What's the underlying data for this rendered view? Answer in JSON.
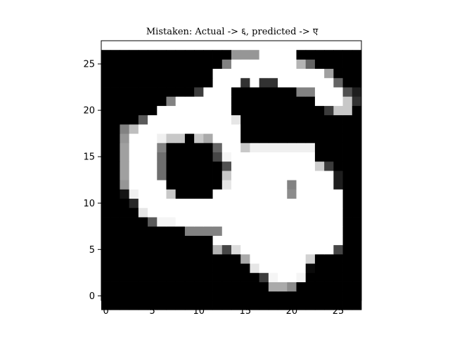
{
  "chart_data": {
    "type": "heatmap",
    "title": "Mistaken: Actual -> ६, predicted -> ए",
    "xlabel": "",
    "ylabel": "",
    "xlim": [
      -0.5,
      27.5
    ],
    "ylim": [
      27.5,
      -0.5
    ],
    "x_ticks": [
      0,
      5,
      10,
      15,
      20,
      25
    ],
    "y_ticks": [
      0,
      5,
      10,
      15,
      20,
      25
    ],
    "colormap": "gray",
    "value_range": [
      0,
      255
    ],
    "grid": false,
    "rows": 28,
    "cols": 28,
    "values": [
      [
        0,
        0,
        0,
        0,
        0,
        0,
        0,
        0,
        0,
        0,
        0,
        0,
        0,
        0,
        0,
        0,
        0,
        0,
        0,
        0,
        0,
        0,
        0,
        0,
        0,
        0,
        0,
        0
      ],
      [
        0,
        0,
        0,
        0,
        0,
        0,
        0,
        0,
        0,
        0,
        0,
        0,
        0,
        0,
        0,
        0,
        0,
        0,
        0,
        0,
        0,
        0,
        0,
        0,
        0,
        0,
        0,
        0
      ],
      [
        0,
        0,
        0,
        0,
        0,
        0,
        0,
        0,
        0,
        0,
        0,
        0,
        0,
        0,
        0,
        0,
        0,
        0,
        170,
        170,
        140,
        0,
        0,
        0,
        0,
        0,
        0,
        0
      ],
      [
        0,
        0,
        0,
        0,
        0,
        0,
        0,
        0,
        0,
        0,
        0,
        0,
        0,
        0,
        0,
        0,
        0,
        60,
        245,
        255,
        255,
        245,
        0,
        0,
        0,
        0,
        0,
        0
      ],
      [
        0,
        0,
        0,
        0,
        0,
        0,
        0,
        0,
        0,
        0,
        0,
        0,
        0,
        0,
        0,
        0,
        230,
        255,
        255,
        255,
        255,
        255,
        10,
        0,
        0,
        0,
        0,
        0
      ],
      [
        0,
        0,
        0,
        0,
        0,
        0,
        0,
        0,
        0,
        0,
        0,
        0,
        0,
        0,
        0,
        170,
        255,
        255,
        255,
        255,
        255,
        255,
        210,
        0,
        0,
        0,
        0,
        0
      ],
      [
        0,
        0,
        0,
        0,
        0,
        0,
        0,
        0,
        0,
        0,
        0,
        0,
        180,
        70,
        220,
        255,
        255,
        255,
        255,
        255,
        255,
        255,
        255,
        255,
        255,
        70,
        0,
        0
      ],
      [
        0,
        0,
        0,
        0,
        0,
        0,
        0,
        0,
        0,
        0,
        0,
        0,
        255,
        255,
        255,
        255,
        255,
        255,
        255,
        255,
        255,
        255,
        255,
        255,
        255,
        255,
        0,
        0
      ],
      [
        0,
        0,
        0,
        0,
        0,
        0,
        0,
        0,
        0,
        130,
        130,
        130,
        130,
        255,
        255,
        255,
        255,
        255,
        255,
        255,
        255,
        255,
        255,
        255,
        255,
        255,
        0,
        0
      ],
      [
        0,
        0,
        0,
        0,
        0,
        90,
        245,
        245,
        255,
        255,
        255,
        255,
        255,
        255,
        255,
        255,
        255,
        255,
        255,
        255,
        255,
        255,
        255,
        255,
        255,
        255,
        0,
        0
      ],
      [
        0,
        0,
        0,
        0,
        230,
        255,
        255,
        255,
        255,
        255,
        255,
        255,
        255,
        255,
        255,
        255,
        255,
        255,
        255,
        255,
        255,
        255,
        255,
        255,
        255,
        255,
        0,
        0
      ],
      [
        0,
        0,
        0,
        40,
        255,
        255,
        255,
        255,
        255,
        255,
        255,
        255,
        255,
        255,
        255,
        255,
        255,
        255,
        255,
        255,
        255,
        255,
        255,
        255,
        255,
        255,
        0,
        0
      ],
      [
        0,
        0,
        20,
        240,
        255,
        255,
        255,
        200,
        0,
        0,
        0,
        0,
        255,
        255,
        255,
        255,
        255,
        255,
        255,
        255,
        140,
        255,
        255,
        255,
        255,
        255,
        0,
        0
      ],
      [
        0,
        0,
        150,
        255,
        255,
        255,
        255,
        0,
        0,
        0,
        0,
        0,
        0,
        230,
        255,
        255,
        255,
        255,
        255,
        255,
        130,
        255,
        255,
        255,
        255,
        30,
        0,
        0
      ],
      [
        0,
        0,
        160,
        255,
        255,
        255,
        110,
        0,
        0,
        0,
        0,
        0,
        0,
        200,
        255,
        255,
        255,
        255,
        255,
        255,
        255,
        255,
        255,
        255,
        255,
        30,
        0,
        0
      ],
      [
        0,
        0,
        160,
        255,
        255,
        255,
        110,
        0,
        0,
        0,
        0,
        0,
        0,
        80,
        255,
        255,
        255,
        255,
        255,
        255,
        255,
        255,
        255,
        205,
        60,
        0,
        0,
        0
      ],
      [
        0,
        0,
        160,
        255,
        255,
        255,
        110,
        0,
        0,
        0,
        0,
        0,
        70,
        245,
        255,
        255,
        255,
        255,
        255,
        255,
        255,
        255,
        255,
        0,
        0,
        0,
        0,
        0
      ],
      [
        0,
        0,
        160,
        255,
        255,
        255,
        130,
        0,
        0,
        0,
        0,
        0,
        100,
        255,
        255,
        200,
        240,
        240,
        240,
        240,
        240,
        240,
        240,
        0,
        0,
        0,
        0,
        0
      ],
      [
        0,
        0,
        150,
        255,
        255,
        255,
        240,
        200,
        200,
        0,
        200,
        170,
        255,
        255,
        255,
        0,
        0,
        0,
        0,
        0,
        0,
        0,
        0,
        0,
        0,
        0,
        0,
        0
      ],
      [
        0,
        0,
        130,
        190,
        255,
        255,
        255,
        255,
        255,
        255,
        255,
        255,
        255,
        255,
        255,
        0,
        0,
        0,
        0,
        0,
        0,
        0,
        0,
        0,
        0,
        0,
        0,
        0
      ],
      [
        0,
        0,
        0,
        0,
        90,
        255,
        255,
        255,
        255,
        255,
        255,
        255,
        255,
        255,
        230,
        0,
        0,
        0,
        0,
        0,
        0,
        0,
        0,
        0,
        0,
        0,
        0,
        0
      ],
      [
        0,
        0,
        0,
        0,
        0,
        0,
        255,
        255,
        255,
        255,
        255,
        255,
        255,
        255,
        0,
        0,
        0,
        0,
        0,
        0,
        0,
        0,
        0,
        0,
        60,
        200,
        200,
        0
      ],
      [
        0,
        0,
        0,
        0,
        0,
        0,
        0,
        130,
        255,
        255,
        255,
        255,
        255,
        255,
        0,
        0,
        0,
        0,
        0,
        0,
        0,
        0,
        0,
        255,
        255,
        255,
        200,
        50
      ],
      [
        0,
        0,
        0,
        0,
        0,
        0,
        0,
        0,
        0,
        0,
        60,
        255,
        255,
        255,
        0,
        0,
        0,
        0,
        0,
        0,
        0,
        130,
        130,
        255,
        255,
        255,
        80,
        30
      ],
      [
        0,
        0,
        0,
        0,
        0,
        0,
        0,
        0,
        0,
        0,
        0,
        0,
        255,
        255,
        255,
        50,
        255,
        50,
        50,
        255,
        255,
        255,
        255,
        255,
        255,
        100,
        0,
        0
      ],
      [
        0,
        0,
        0,
        0,
        0,
        0,
        0,
        0,
        0,
        0,
        0,
        0,
        255,
        255,
        255,
        255,
        255,
        255,
        255,
        255,
        255,
        255,
        255,
        255,
        160,
        0,
        0,
        0
      ],
      [
        0,
        0,
        0,
        0,
        0,
        0,
        0,
        0,
        0,
        0,
        0,
        0,
        0,
        130,
        255,
        255,
        255,
        255,
        255,
        255,
        255,
        180,
        100,
        0,
        0,
        0,
        0,
        0
      ],
      [
        0,
        0,
        0,
        0,
        0,
        0,
        0,
        0,
        0,
        0,
        0,
        0,
        0,
        0,
        150,
        150,
        150,
        255,
        255,
        255,
        255,
        0,
        0,
        0,
        0,
        0,
        0,
        0
      ]
    ]
  }
}
